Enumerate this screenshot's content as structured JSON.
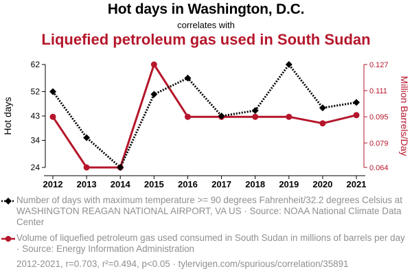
{
  "title": "Hot days in Washington, D.C.",
  "subtitle": "correlates with",
  "title2": "Liquefied petroleum gas used in South Sudan",
  "chart_data": {
    "type": "line",
    "categories": [
      "2012",
      "2013",
      "2014",
      "2015",
      "2016",
      "2017",
      "2018",
      "2019",
      "2020",
      "2021"
    ],
    "series": [
      {
        "axis": "left",
        "values": [
          52,
          35,
          24,
          51,
          57,
          43,
          45,
          62,
          46,
          48
        ],
        "color": "#000000",
        "marker": "diamond",
        "line_style": "dotted"
      },
      {
        "axis": "right",
        "values": [
          0.095,
          0.064,
          0.064,
          0.127,
          0.095,
          0.095,
          0.095,
          0.095,
          0.091,
          0.096
        ],
        "color": "#b5162b",
        "marker": "circle",
        "line_style": "solid"
      }
    ],
    "ylabel": "Hot days",
    "y2label": "Million Barrels/Day",
    "yticks": [
      "24",
      "34",
      "43",
      "52",
      "62"
    ],
    "y2ticks": [
      "0.064",
      "0.079",
      "0.095",
      "0.111",
      "0.127"
    ],
    "ylim": [
      24,
      62
    ],
    "y2lim": [
      0.064,
      0.127
    ],
    "grid": "none"
  },
  "legend": {
    "items": [
      {
        "text": "Number of days with maximum temperature >= 90 degrees Fahrenheit/32.2 degrees Celsius at WASHINGTON REAGAN NATIONAL AIRPORT, VA US · Source: NOAA National Climate Data Center"
      },
      {
        "text": "Volume of liquefied petroleum gas used consumed in South Sudan in millions of barrels per day · Source: Energy Information Administration"
      }
    ]
  },
  "footer": "2012-2021, r=0.703, r²=0.494, p<0.05 · tylervigen.com/spurious/correlation/35891"
}
